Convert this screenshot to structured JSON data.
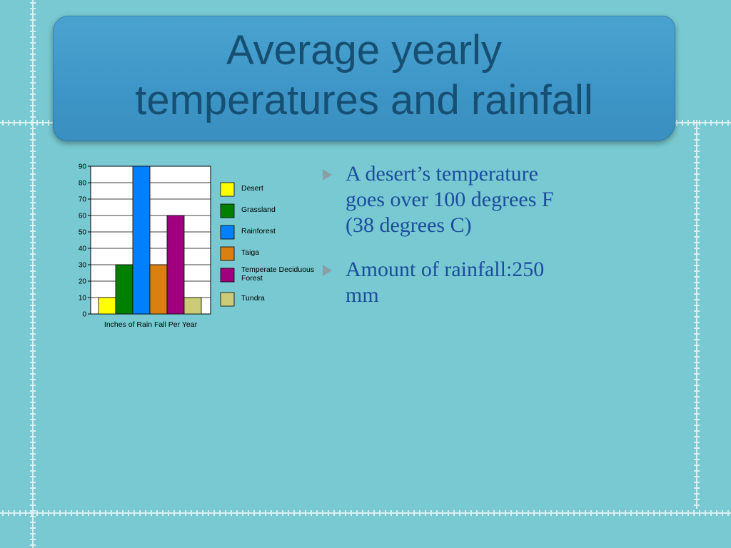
{
  "slide": {
    "title_line1": "Average yearly",
    "title_line2": "temperatures and rainfall"
  },
  "bullets": [
    {
      "text": "A desert’s temperature goes over 100 degrees F (38 degrees C)",
      "icon": "triangle-bullet-icon"
    },
    {
      "text": " Amount of rainfall:250 mm",
      "icon": "triangle-bullet-icon"
    }
  ],
  "chart_data": {
    "type": "bar",
    "categories": [
      "Desert",
      "Grassland",
      "Rainforest",
      "Taiga",
      "Temperate Deciduous Forest",
      "Tundra"
    ],
    "values": [
      10,
      30,
      90,
      30,
      60,
      10
    ],
    "colors": [
      "#ffff00",
      "#008000",
      "#0080ff",
      "#d98011",
      "#a0007e",
      "#cccc78"
    ],
    "title": "",
    "xlabel": "Inches of Rain Fall Per Year",
    "ylabel": "",
    "ylim": [
      0,
      90
    ],
    "yticks": [
      0,
      10,
      20,
      30,
      40,
      50,
      60,
      70,
      80,
      90
    ],
    "legend_position": "right",
    "legend": [
      "Desert",
      "Grassland",
      "Rainforest",
      "Taiga",
      [
        "Temperate Deciduous",
        "Forest"
      ],
      "Tundra"
    ],
    "grid": true
  }
}
